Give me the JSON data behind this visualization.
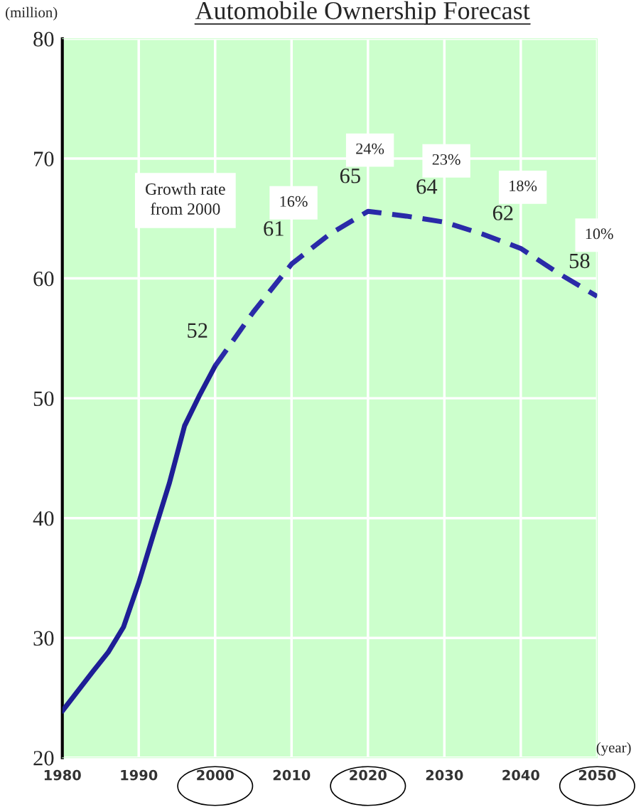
{
  "chart_data": {
    "type": "line",
    "title": "Automobile Ownership Forecast",
    "ylabel": "(million)",
    "xlabel": "(year)",
    "series": [
      {
        "color": "#1e1e96",
        "line_style": "solid",
        "x": [
          1980,
          1984,
          1986,
          1988,
          1990,
          1992,
          1994,
          1996,
          1998,
          2000
        ],
        "values": [
          23.9,
          27.2,
          28.8,
          30.9,
          34.6,
          38.8,
          42.9,
          47.7,
          50.3,
          52.7
        ]
      },
      {
        "color": "#2a2aa8",
        "line_style": "dashed",
        "x": [
          2000,
          2005,
          2010,
          2015,
          2020,
          2025,
          2030,
          2035,
          2040,
          2045,
          2050
        ],
        "values": [
          52.7,
          57.2,
          61.2,
          63.7,
          65.6,
          65.2,
          64.7,
          63.7,
          62.5,
          60.4,
          58.5
        ]
      }
    ],
    "xlim": [
      1980,
      2050
    ],
    "xticks": [
      1980,
      1990,
      2000,
      2010,
      2020,
      2030,
      2040,
      2050
    ],
    "ylim": [
      20,
      80
    ],
    "yticks": [
      20,
      30,
      40,
      50,
      60,
      70,
      80
    ],
    "grid": true,
    "marker": "none",
    "legend": false,
    "annotations": [
      {
        "text": "52",
        "x": 2000,
        "y": 52.7
      },
      {
        "text": "61",
        "x": 2010,
        "y": 61.2
      },
      {
        "text": "65",
        "x": 2020,
        "y": 65.6
      },
      {
        "text": "64",
        "x": 2030,
        "y": 64.7
      },
      {
        "text": "62",
        "x": 2040,
        "y": 62.5
      },
      {
        "text": "58",
        "x": 2050,
        "y": 58.5
      },
      "Growth rate\nfrom 2000",
      "16%",
      "24%",
      "23%",
      "18%",
      "10%"
    ]
  }
}
